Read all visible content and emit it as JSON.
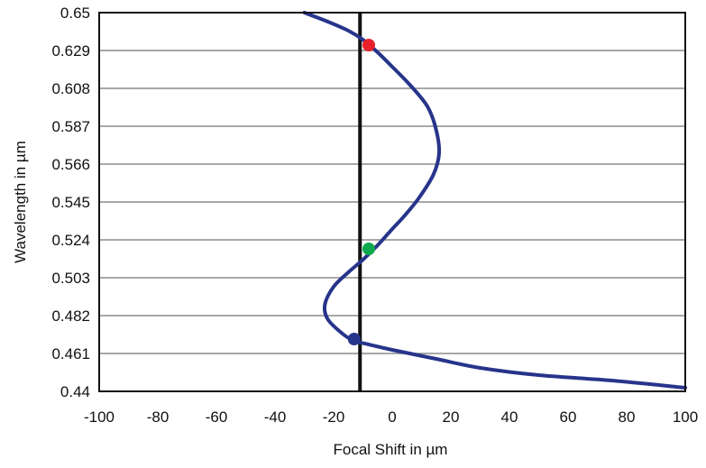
{
  "chart_data": {
    "type": "line",
    "xlabel": "Focal Shift in µm",
    "ylabel": "Wavelength in µm",
    "xlim": [
      -100,
      100
    ],
    "ylim": [
      0.44,
      0.65
    ],
    "x_ticks": [
      -100,
      -80,
      -60,
      -40,
      -20,
      0,
      20,
      40,
      60,
      80,
      100
    ],
    "y_ticks": [
      0.44,
      0.461,
      0.482,
      0.503,
      0.524,
      0.545,
      0.566,
      0.587,
      0.608,
      0.629,
      0.65
    ],
    "x_tick_labels": [
      "-100",
      "-80",
      "-60",
      "-40",
      "-20",
      "0",
      "20",
      "40",
      "60",
      "80",
      "100"
    ],
    "y_tick_labels": [
      "0.44",
      "0.461",
      "0.482",
      "0.503",
      "0.524",
      "0.545",
      "0.566",
      "0.587",
      "0.608",
      "0.629",
      "0.65"
    ],
    "grid": "horizontal",
    "reference_line_x": -11,
    "series": [
      {
        "color": "#27348b",
        "x": [
          -30,
          -22,
          -15,
          -10,
          -5,
          0,
          6,
          12,
          15,
          16,
          14,
          9,
          4,
          0,
          -5,
          -10,
          -15,
          -20,
          -23,
          -22,
          -17,
          -13,
          -8,
          0,
          15,
          30,
          50,
          75,
          100
        ],
        "y": [
          0.65,
          0.645,
          0.64,
          0.635,
          0.628,
          0.62,
          0.61,
          0.598,
          0.585,
          0.572,
          0.56,
          0.547,
          0.537,
          0.53,
          0.521,
          0.513,
          0.506,
          0.498,
          0.488,
          0.48,
          0.472,
          0.468,
          0.466,
          0.463,
          0.458,
          0.453,
          0.449,
          0.446,
          0.442
        ]
      }
    ],
    "markers": [
      {
        "x": -8,
        "y": 0.632,
        "color": "#e8202a"
      },
      {
        "x": -8,
        "y": 0.519,
        "color": "#0ea84e"
      },
      {
        "x": -13,
        "y": 0.469,
        "color": "#27348b"
      }
    ]
  }
}
